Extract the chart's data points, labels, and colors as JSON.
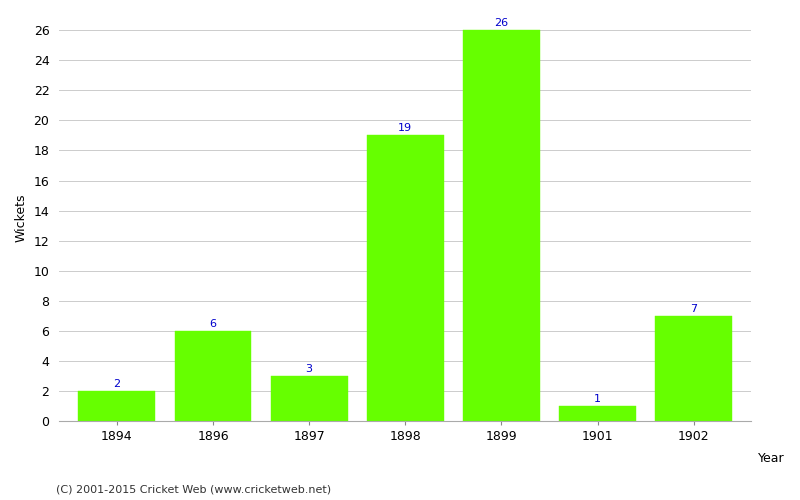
{
  "categories": [
    "1894",
    "1896",
    "1897",
    "1898",
    "1899",
    "1901",
    "1902"
  ],
  "values": [
    2,
    6,
    3,
    19,
    26,
    1,
    7
  ],
  "bar_color": "#66ff00",
  "bar_edge_color": "#66ff00",
  "label_color": "#0000cc",
  "label_fontsize": 8,
  "xlabel": "Year",
  "ylabel": "Wickets",
  "ylim": [
    0,
    27
  ],
  "yticks": [
    0,
    2,
    4,
    6,
    8,
    10,
    12,
    14,
    16,
    18,
    20,
    22,
    24,
    26
  ],
  "grid_color": "#cccccc",
  "background_color": "#ffffff",
  "footer_text": "(C) 2001-2015 Cricket Web (www.cricketweb.net)",
  "footer_fontsize": 8,
  "footer_color": "#333333",
  "bar_width": 0.8,
  "tick_fontsize": 9,
  "xlabel_fontsize": 9,
  "ylabel_fontsize": 9
}
